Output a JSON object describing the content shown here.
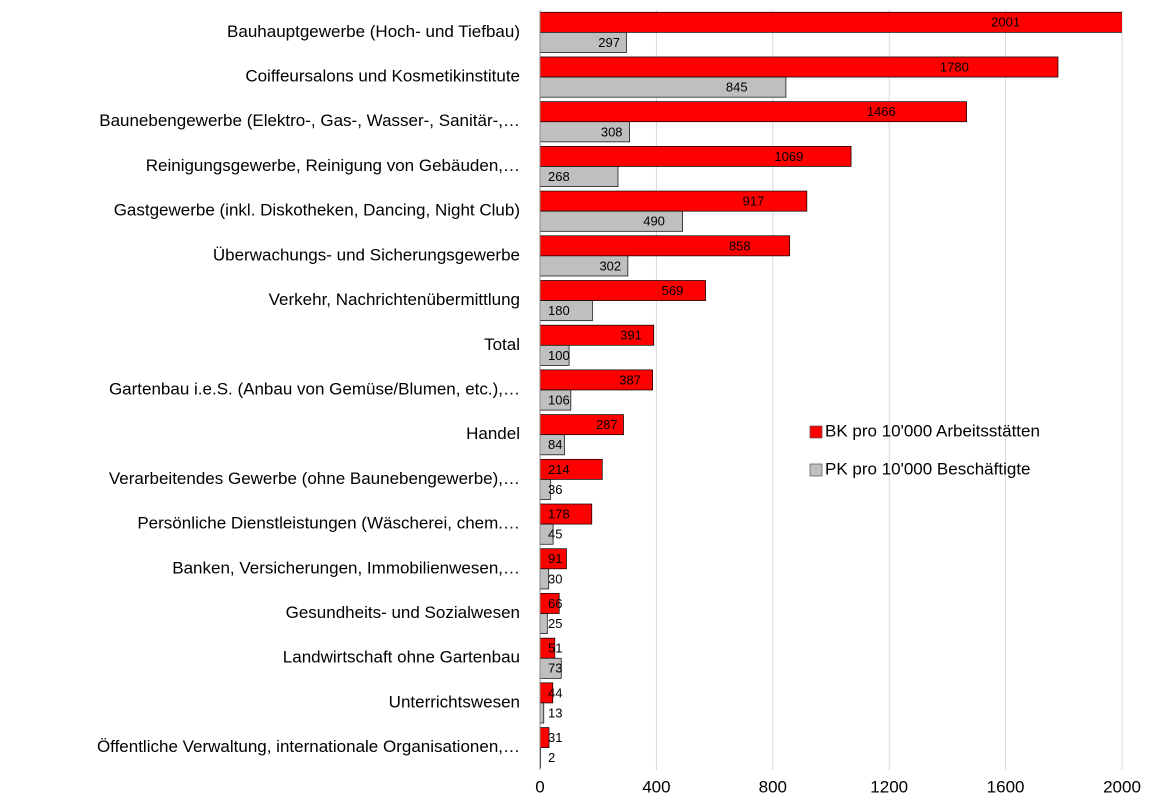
{
  "chart_data": {
    "type": "bar",
    "orientation": "horizontal",
    "categories": [
      "Bauhauptgewerbe (Hoch- und Tiefbau)",
      "Coiffeursalons und Kosmetikinstitute",
      "Baunebengewerbe (Elektro-, Gas-, Wasser-, Sanitär-,…",
      "Reinigungsgewerbe, Reinigung von Gebäuden,…",
      "Gastgewerbe (inkl. Diskotheken, Dancing, Night Club)",
      "Überwachungs- und Sicherungsgewerbe",
      "Verkehr, Nachrichtenübermittlung",
      "Total",
      "Gartenbau i.e.S. (Anbau von Gemüse/Blumen, etc.),…",
      "Handel",
      "Verarbeitendes Gewerbe (ohne Baunebengewerbe),…",
      "Persönliche Dienstleistungen (Wäscherei, chem.…",
      "Banken, Versicherungen, Immobilienwesen,…",
      "Gesundheits- und Sozialwesen",
      "Landwirtschaft  ohne Gartenbau",
      "Unterrichtswesen",
      "Öffentliche Verwaltung, internationale Organisationen,…"
    ],
    "series": [
      {
        "name": "BK pro 10'000 Arbeitsstätten",
        "color": "#ff0000",
        "values": [
          2001,
          1780,
          1466,
          1069,
          917,
          858,
          569,
          391,
          387,
          287,
          214,
          178,
          91,
          66,
          51,
          44,
          31
        ]
      },
      {
        "name": "PK pro 10'000 Beschäftigte",
        "color": "#bfbfbf",
        "values": [
          297,
          845,
          308,
          268,
          490,
          302,
          180,
          100,
          106,
          84,
          36,
          45,
          30,
          25,
          73,
          13,
          2
        ]
      }
    ],
    "xlim": [
      0,
      2000
    ],
    "xticks": [
      0,
      400,
      800,
      1200,
      1600,
      2000
    ],
    "grid": true,
    "legend": "right"
  }
}
